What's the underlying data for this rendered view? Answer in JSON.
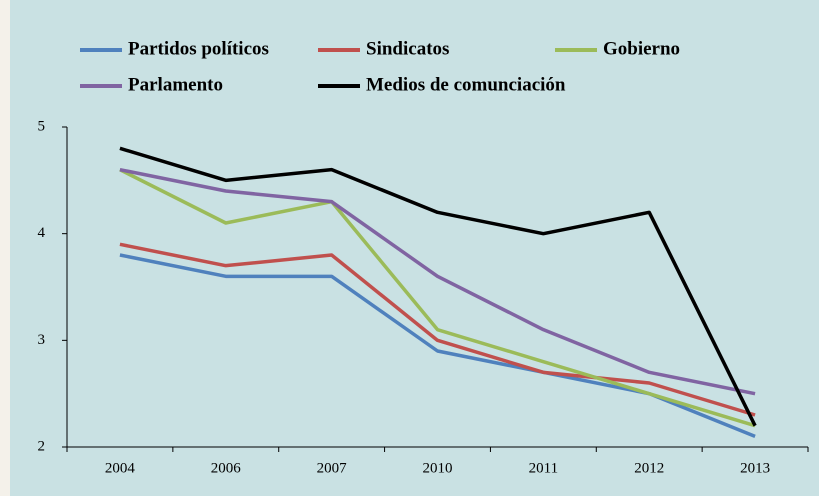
{
  "chart_data": {
    "type": "line",
    "categories": [
      "2004",
      "2006",
      "2007",
      "2010",
      "2011",
      "2012",
      "2013"
    ],
    "series": [
      {
        "name": "Partidos políticos",
        "color": "#4f81bd",
        "values": [
          3.8,
          3.6,
          3.6,
          2.9,
          2.7,
          2.5,
          2.1
        ]
      },
      {
        "name": "Sindicatos",
        "color": "#c0504d",
        "values": [
          3.9,
          3.7,
          3.8,
          3.0,
          2.7,
          2.6,
          2.3
        ]
      },
      {
        "name": "Gobierno",
        "color": "#9bbb59",
        "values": [
          4.6,
          4.1,
          4.3,
          3.1,
          2.8,
          2.5,
          2.2
        ]
      },
      {
        "name": "Parlamento",
        "color": "#8064a2",
        "values": [
          4.6,
          4.4,
          4.3,
          3.6,
          3.1,
          2.7,
          2.5
        ]
      },
      {
        "name": "Medios de comunciación",
        "color": "#000000",
        "values": [
          4.8,
          4.5,
          4.6,
          4.2,
          4.0,
          4.2,
          2.2
        ]
      }
    ],
    "ylim": [
      2,
      5
    ],
    "yticks": [
      2,
      3,
      4,
      5
    ],
    "grid": false
  }
}
